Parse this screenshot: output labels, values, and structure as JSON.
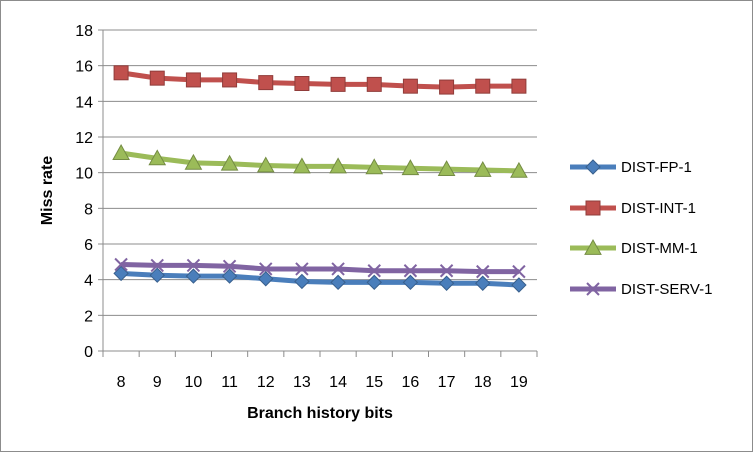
{
  "chart_data": {
    "type": "line",
    "title": "",
    "xlabel": "Branch history bits",
    "ylabel": "Miss rate",
    "categories": [
      "8",
      "9",
      "10",
      "11",
      "12",
      "13",
      "14",
      "15",
      "16",
      "17",
      "18",
      "19"
    ],
    "ylim": [
      0,
      18
    ],
    "yticks": [
      0,
      2,
      4,
      6,
      8,
      10,
      12,
      14,
      16,
      18
    ],
    "grid": "horizontal",
    "legend_position": "right",
    "series": [
      {
        "name": "DIST-FP-1",
        "values": [
          4.35,
          4.25,
          4.2,
          4.2,
          4.05,
          3.9,
          3.85,
          3.85,
          3.85,
          3.8,
          3.8,
          3.7
        ],
        "color": "#4a7ebb",
        "marker": "diamond"
      },
      {
        "name": "DIST-INT-1",
        "values": [
          15.6,
          15.3,
          15.2,
          15.2,
          15.05,
          15.0,
          14.95,
          14.95,
          14.85,
          14.8,
          14.85,
          14.85
        ],
        "color": "#c0504d",
        "marker": "square"
      },
      {
        "name": "DIST-MM-1",
        "values": [
          11.1,
          10.8,
          10.55,
          10.5,
          10.4,
          10.35,
          10.35,
          10.3,
          10.25,
          10.2,
          10.15,
          10.1
        ],
        "color": "#9bbb59",
        "marker": "triangle"
      },
      {
        "name": "DIST-SERV-1",
        "values": [
          4.85,
          4.8,
          4.8,
          4.75,
          4.6,
          4.6,
          4.6,
          4.5,
          4.5,
          4.5,
          4.45,
          4.45
        ],
        "color": "#8064a2",
        "marker": "x"
      }
    ]
  }
}
